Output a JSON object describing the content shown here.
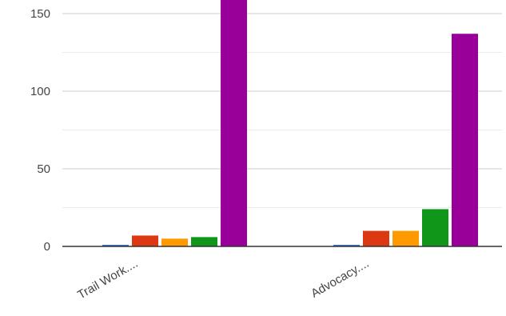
{
  "chart_data": {
    "type": "bar",
    "categories": [
      "Trail Work....",
      "Advocacy...."
    ],
    "series": [
      {
        "color": "#3366cc",
        "values": [
          1,
          1
        ]
      },
      {
        "color": "#dc3912",
        "values": [
          7,
          10
        ]
      },
      {
        "color": "#ff9900",
        "values": [
          5,
          10
        ]
      },
      {
        "color": "#109618",
        "values": [
          6,
          24
        ]
      },
      {
        "color": "#990099",
        "values": [
          165,
          137
        ]
      }
    ],
    "y_ticks": [
      "0",
      "50",
      "100",
      "150"
    ],
    "ylim": [
      0,
      160
    ],
    "grid": true,
    "minor_gridlines": true,
    "title": "",
    "xlabel": "",
    "ylabel": ""
  }
}
